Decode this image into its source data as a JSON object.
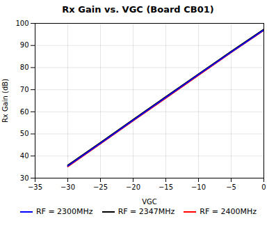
{
  "chart_data": {
    "type": "line",
    "title": "Rx Gain vs. VGC (Board CB01)",
    "xlabel": "VGC",
    "ylabel": "Rx Gain (dB)",
    "x": [
      -30,
      -25,
      -20,
      -15,
      -10,
      -5,
      0
    ],
    "series": [
      {
        "name": "RF = 2300MHz",
        "color": "#0000FF",
        "values": [
          35.5,
          45.8,
          56.2,
          66.5,
          76.8,
          87.0,
          97.0
        ]
      },
      {
        "name": "RF = 2347MHz",
        "color": "#000000",
        "values": [
          35.8,
          46.1,
          56.5,
          66.8,
          77.1,
          87.3,
          97.3
        ]
      },
      {
        "name": "RF = 2400MHz",
        "color": "#FF0000",
        "values": [
          35.2,
          45.5,
          55.9,
          66.2,
          76.5,
          86.8,
          96.8
        ]
      }
    ],
    "xlim": [
      -35,
      0
    ],
    "ylim": [
      30,
      100
    ],
    "xticks": [
      -35,
      -30,
      -25,
      -20,
      -15,
      -10,
      -5,
      0
    ],
    "yticks": [
      30,
      40,
      50,
      60,
      70,
      80,
      90,
      100
    ],
    "grid": true,
    "legend": "bottom"
  }
}
